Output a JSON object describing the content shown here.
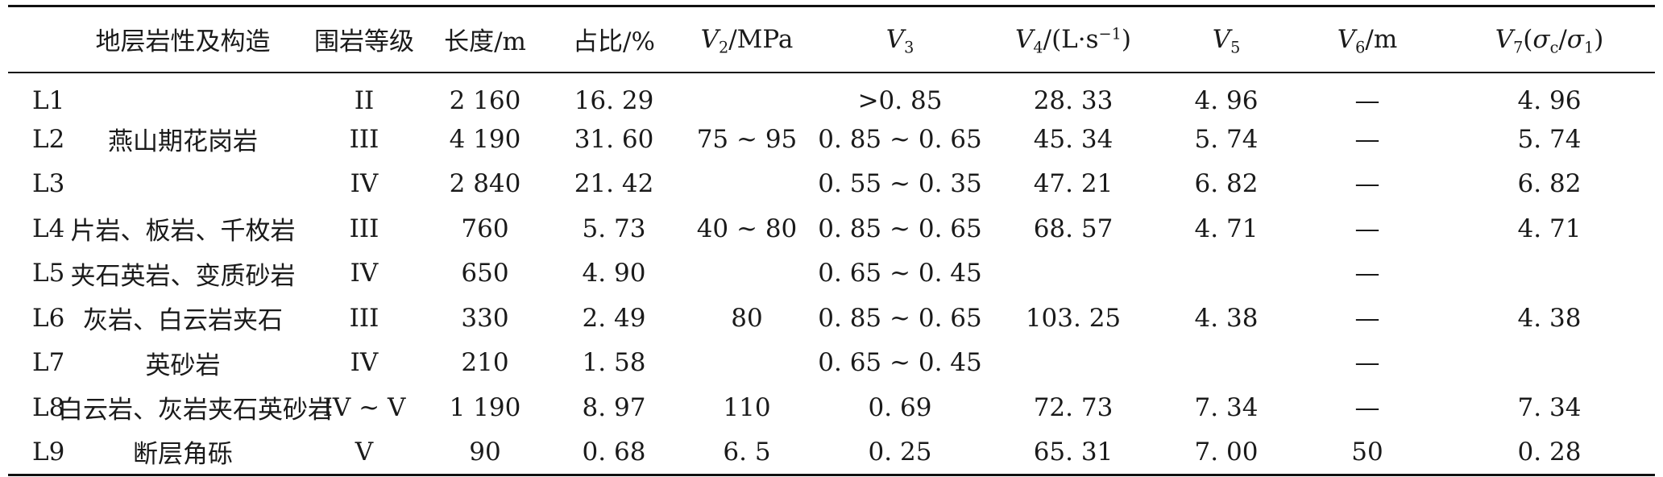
{
  "table": {
    "headers": {
      "lithology": "地层岩性及构造",
      "grade": "围岩等级",
      "length": "长度/m",
      "ratio": "占比/%",
      "v2_var": "V",
      "v2_sub": "2",
      "v2_unit": "/MPa",
      "v3_var": "V",
      "v3_sub": "3",
      "v4_var": "V",
      "v4_sub": "4",
      "v4_unit_a": "/(L·s",
      "v4_unit_sup": "−1",
      "v4_unit_b": ")",
      "v5_var": "V",
      "v5_sub": "5",
      "v6_var": "V",
      "v6_sub": "6",
      "v6_unit": "/m",
      "v7_var": "V",
      "v7_sub": "7",
      "v7_open": "(",
      "v7_sigma": "σ",
      "v7_c": "c",
      "v7_slash": "/",
      "v7_sigma1": "σ",
      "v7_one": "1",
      "v7_close": ")"
    },
    "rows": [
      {
        "code": "L1",
        "lith": "",
        "grade": "II",
        "length": "2 160",
        "ratio": "16. 29",
        "v2": "",
        "v3": ">0. 85",
        "v4": "28. 33",
        "v5": "4. 96",
        "v6": "—",
        "v7": "4. 96"
      },
      {
        "code": "L2",
        "lith": "燕山期花岗岩",
        "grade": "III",
        "length": "4 190",
        "ratio": "31. 60",
        "v2": "75 ~ 95",
        "v3": "0. 85 ~ 0. 65",
        "v4": "45. 34",
        "v5": "5. 74",
        "v6": "—",
        "v7": "5. 74"
      },
      {
        "code": "L3",
        "lith": "",
        "grade": "IV",
        "length": "2 840",
        "ratio": "21. 42",
        "v2": "",
        "v3": "0. 55 ~ 0. 35",
        "v4": "47. 21",
        "v5": "6. 82",
        "v6": "—",
        "v7": "6. 82"
      },
      {
        "code": "L4",
        "lith": "片岩、板岩、千枚岩",
        "grade": "III",
        "length": "760",
        "ratio": "5. 73",
        "v2": "40 ~ 80",
        "v3": "0. 85 ~ 0. 65",
        "v4": "68. 57",
        "v5": "4. 71",
        "v6": "—",
        "v7": "4. 71"
      },
      {
        "code": "L5",
        "lith": "夹石英岩、变质砂岩",
        "grade": "IV",
        "length": "650",
        "ratio": "4. 90",
        "v2": "",
        "v3": "0. 65 ~ 0. 45",
        "v4": "",
        "v5": "",
        "v6": "—",
        "v7": ""
      },
      {
        "code": "L6",
        "lith": "灰岩、白云岩夹石",
        "grade": "III",
        "length": "330",
        "ratio": "2. 49",
        "v2": "80",
        "v3": "0. 85 ~ 0. 65",
        "v4": "103. 25",
        "v5": "4. 38",
        "v6": "—",
        "v7": "4. 38"
      },
      {
        "code": "L7",
        "lith": "英砂岩",
        "grade": "IV",
        "length": "210",
        "ratio": "1. 58",
        "v2": "",
        "v3": "0. 65 ~ 0. 45",
        "v4": "",
        "v5": "",
        "v6": "—",
        "v7": ""
      },
      {
        "code": "L8",
        "lith": "白云岩、灰岩夹石英砂岩",
        "grade": "IV ~ V",
        "length": "1 190",
        "ratio": "8. 97",
        "v2": "110",
        "v3": "0. 69",
        "v4": "72. 73",
        "v5": "7. 34",
        "v6": "—",
        "v7": "7. 34"
      },
      {
        "code": "L9",
        "lith": "断层角砾",
        "grade": "V",
        "length": "90",
        "ratio": "0. 68",
        "v2": "6. 5",
        "v3": "0. 25",
        "v4": "65. 31",
        "v5": "7. 00",
        "v6": "50",
        "v7": "0. 28"
      }
    ]
  }
}
